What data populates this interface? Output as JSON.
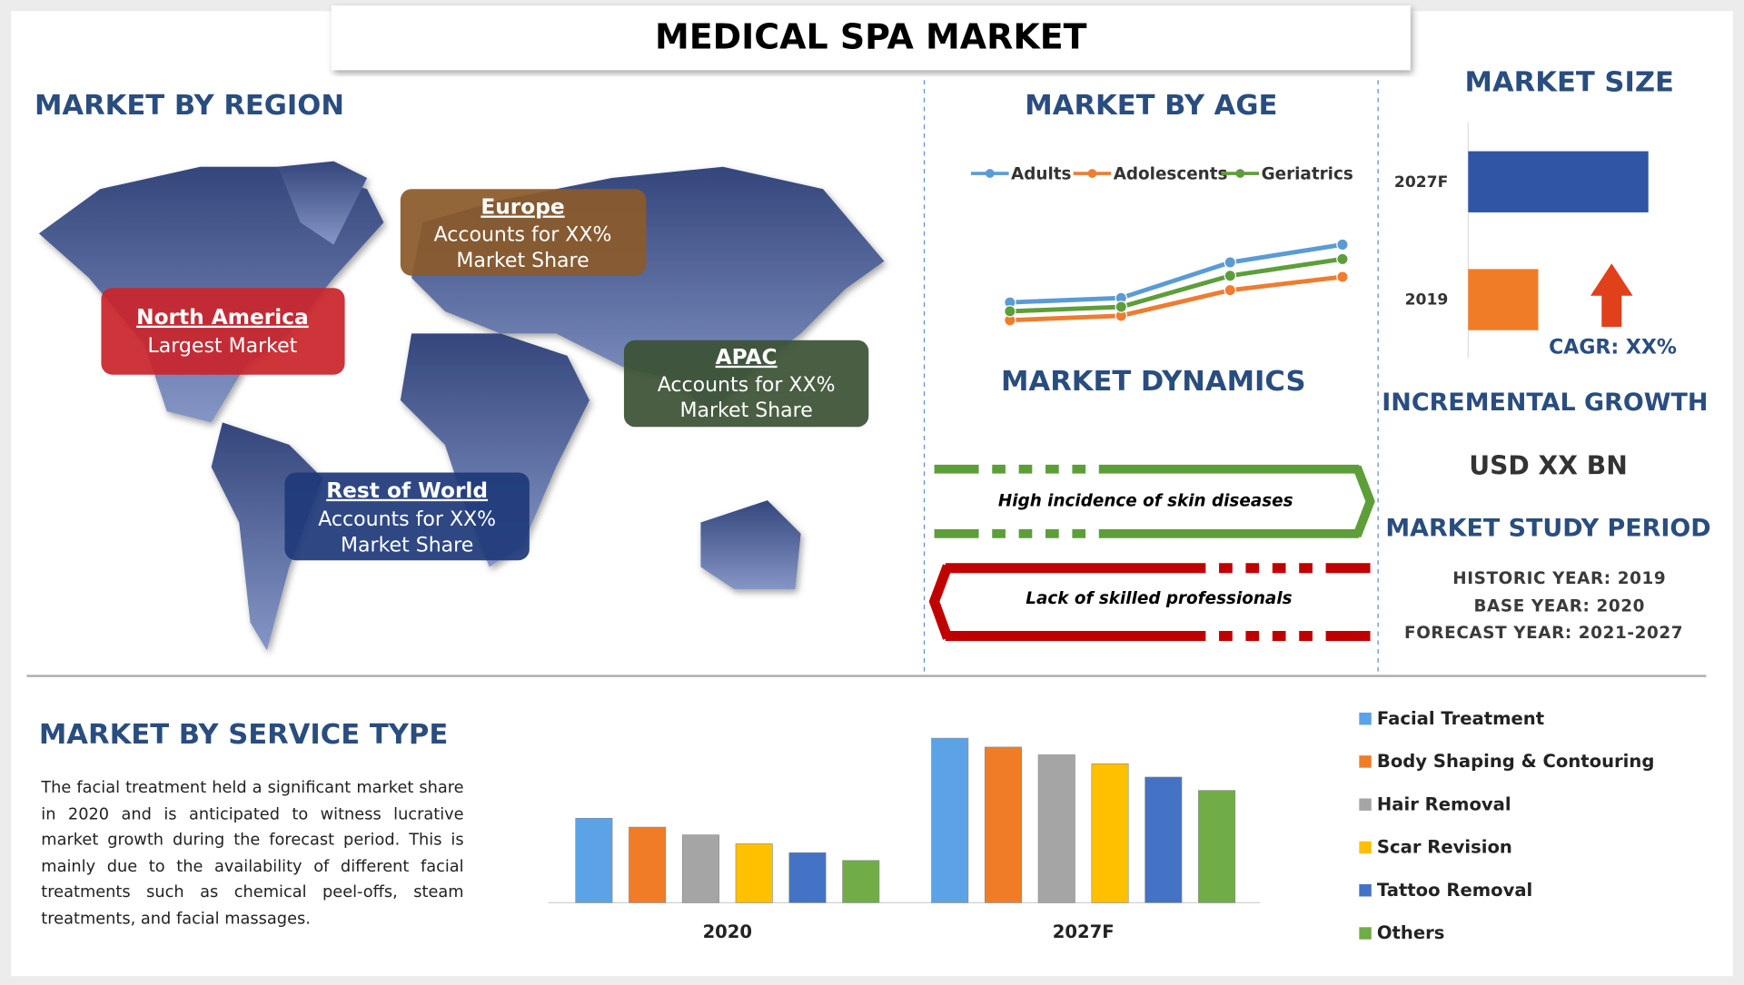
{
  "title": "MEDICAL SPA MARKET",
  "region": {
    "heading": "MARKET BY REGION",
    "boxes": [
      {
        "name": "North America",
        "lines": [
          "Largest Market"
        ]
      },
      {
        "name": "Europe",
        "lines": [
          "Accounts for XX%",
          "Market Share"
        ]
      },
      {
        "name": "APAC",
        "lines": [
          "Accounts for XX%",
          "Market Share"
        ]
      },
      {
        "name": "Rest of World",
        "lines": [
          "Accounts for XX%",
          "Market Share"
        ]
      }
    ]
  },
  "age": {
    "heading": "MARKET BY AGE"
  },
  "dynamics": {
    "heading": "MARKET DYNAMICS",
    "driver": "High incidence of skin diseases",
    "challenge": "Lack of skilled professionals"
  },
  "size": {
    "heading": "MARKET SIZE",
    "cagr": "CAGR: XX%"
  },
  "growth": {
    "heading": "INCREMENTAL GROWTH",
    "value": "USD XX BN"
  },
  "study": {
    "heading": "MARKET STUDY PERIOD",
    "lines": [
      "HISTORIC YEAR: 2019",
      "BASE YEAR: 2020",
      "FORECAST YEAR: 2021-2027"
    ]
  },
  "service": {
    "heading": "MARKET BY SERVICE TYPE",
    "text": "The facial treatment held a significant market share in 2020 and is anticipated to witness lucrative market growth during the forecast period. This is mainly due to the availability of different facial treatments such as chemical peel-offs, steam treatments, and facial massages."
  },
  "chart_data": [
    {
      "type": "line",
      "categories": [
        null,
        null,
        null,
        null
      ],
      "ylim": [
        0,
        100
      ],
      "series": [
        {
          "name": "Adults",
          "color": "#5b9bd5",
          "values": [
            28,
            32,
            64,
            80
          ]
        },
        {
          "name": "Adolescents",
          "color": "#ed7d31",
          "values": [
            12,
            16,
            39,
            51
          ]
        },
        {
          "name": "Geriatrics",
          "color": "#5e9e3a",
          "values": [
            20,
            24,
            52,
            67
          ]
        }
      ]
    },
    {
      "type": "bar",
      "orientation": "horizontal",
      "categories": [
        "2027F",
        "2019"
      ],
      "values": [
        162,
        63
      ],
      "colors": [
        "#2f55a4",
        "#f07c28"
      ],
      "xlim": [
        0,
        170
      ]
    },
    {
      "type": "bar",
      "categories": [
        "2020",
        "2027F"
      ],
      "ylim": [
        0,
        160
      ],
      "series": [
        {
          "name": "Facial Treatment",
          "color": "#5ba3e6",
          "values": [
            76,
            148
          ]
        },
        {
          "name": "Body Shaping & Contouring",
          "color": "#f07c28",
          "values": [
            68,
            140
          ]
        },
        {
          "name": "Hair Removal",
          "color": "#a5a5a5",
          "values": [
            61,
            133
          ]
        },
        {
          "name": "Scar Revision",
          "color": "#ffc000",
          "values": [
            53,
            125
          ]
        },
        {
          "name": "Tattoo Removal",
          "color": "#4472c4",
          "values": [
            45,
            113
          ]
        },
        {
          "name": "Others",
          "color": "#70ad47",
          "values": [
            38,
            101
          ]
        }
      ]
    }
  ]
}
